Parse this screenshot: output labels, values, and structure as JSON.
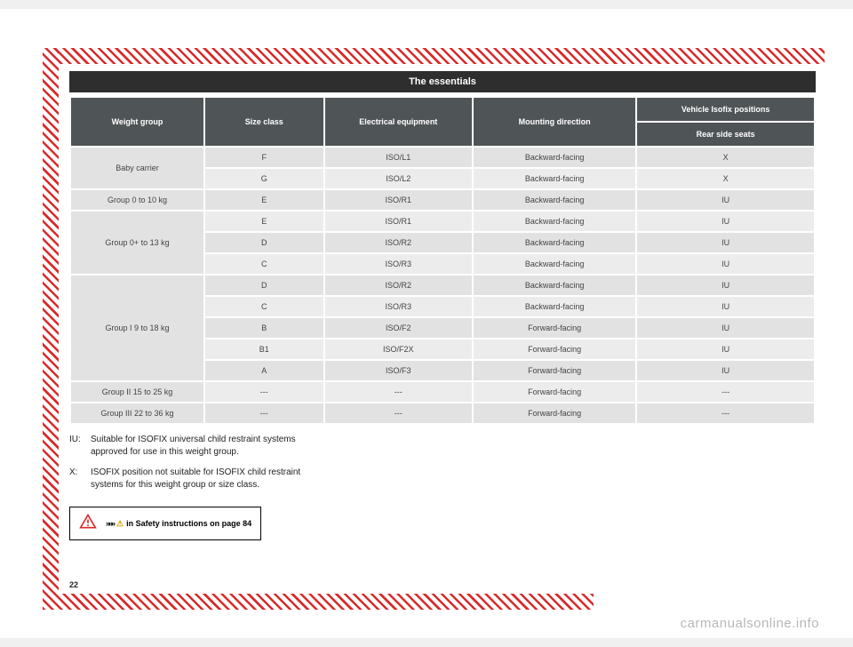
{
  "title": "The essentials",
  "page_number": "22",
  "watermark": "carmanualsonline.info",
  "colors": {
    "hatch_red": "#d92a2a",
    "header_dark": "#2e2e2e",
    "th_bg": "#4f5557",
    "row_a": "#ececec",
    "row_b": "#e2e2e2"
  },
  "table": {
    "headers": {
      "weight_group": "Weight group",
      "size_class": "Size class",
      "electrical_equipment": "Electrical equipment",
      "mounting_direction": "Mounting direction",
      "vehicle_isofix_positions": "Vehicle Isofix positions",
      "rear_side_seats": "Rear side seats"
    },
    "groups": [
      {
        "label": "Baby carrier",
        "rows": [
          {
            "size": "F",
            "equip": "ISO/L1",
            "dir": "Backward-facing",
            "pos": "X"
          },
          {
            "size": "G",
            "equip": "ISO/L2",
            "dir": "Backward-facing",
            "pos": "X"
          }
        ]
      },
      {
        "label": "Group 0 to 10 kg",
        "rows": [
          {
            "size": "E",
            "equip": "ISO/R1",
            "dir": "Backward-facing",
            "pos": "IU"
          }
        ]
      },
      {
        "label": "Group 0+ to 13 kg",
        "rows": [
          {
            "size": "E",
            "equip": "ISO/R1",
            "dir": "Backward-facing",
            "pos": "IU"
          },
          {
            "size": "D",
            "equip": "ISO/R2",
            "dir": "Backward-facing",
            "pos": "IU"
          },
          {
            "size": "C",
            "equip": "ISO/R3",
            "dir": "Backward-facing",
            "pos": "IU"
          }
        ]
      },
      {
        "label": "Group I 9 to 18 kg",
        "rows": [
          {
            "size": "D",
            "equip": "ISO/R2",
            "dir": "Backward-facing",
            "pos": "IU"
          },
          {
            "size": "C",
            "equip": "ISO/R3",
            "dir": "Backward-facing",
            "pos": "IU"
          },
          {
            "size": "B",
            "equip": "ISO/F2",
            "dir": "Forward-facing",
            "pos": "IU"
          },
          {
            "size": "B1",
            "equip": "ISO/F2X",
            "dir": "Forward-facing",
            "pos": "IU"
          },
          {
            "size": "A",
            "equip": "ISO/F3",
            "dir": "Forward-facing",
            "pos": "IU"
          }
        ]
      },
      {
        "label": "Group II 15 to 25 kg",
        "rows": [
          {
            "size": "---",
            "equip": "---",
            "dir": "Forward-facing",
            "pos": "---"
          }
        ]
      },
      {
        "label": "Group III 22 to 36 kg",
        "rows": [
          {
            "size": "---",
            "equip": "---",
            "dir": "Forward-facing",
            "pos": "---"
          }
        ]
      }
    ]
  },
  "notes": [
    {
      "key": "IU:",
      "text": "Suitable for ISOFIX universal child restraint systems approved for use in this weight group."
    },
    {
      "key": "X:",
      "text": "ISOFIX position not suitable for ISOFIX child restraint systems for this weight group or size class."
    }
  ],
  "safety": {
    "chevrons": "»»»",
    "text_suffix": " in Safety instructions on page 84"
  }
}
